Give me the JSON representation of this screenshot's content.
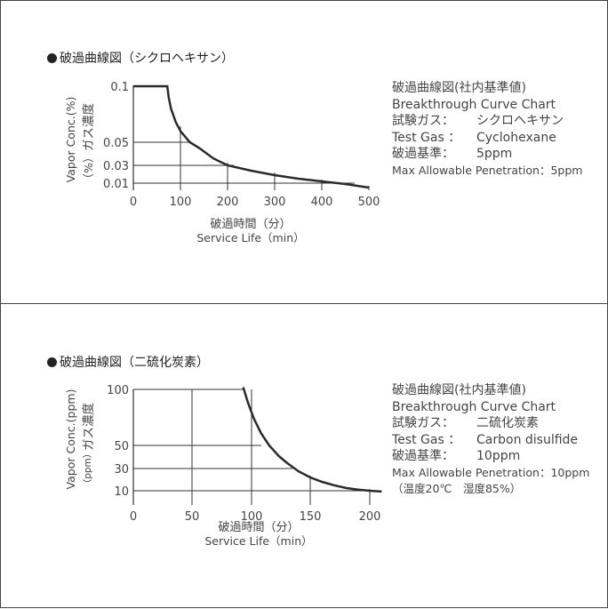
{
  "panels": [
    {
      "heading": "破過曲線図（シクロヘキサン）",
      "info": {
        "line1": "破過曲線図(社内基準値)",
        "line2": "Breakthrough Curve Chart",
        "gas_label_jp": "試験ガス：",
        "gas_value_jp": "シクロヘキサン",
        "gas_label_en": "Test Gas ：",
        "gas_value_en": "Cyclohexane",
        "criterion_label": "破過基準：",
        "criterion_value": "5ppm",
        "max_pen": "Max Allowable Penetration：5ppm"
      }
    },
    {
      "heading": "破過曲線図（二硫化炭素）",
      "info": {
        "line1": "破過曲線図(社内基準値)",
        "line2": "Breakthrough Curve Chart",
        "gas_label_jp": "試験ガス：",
        "gas_value_jp": "二硫化炭素",
        "gas_label_en": "Test Gas ：",
        "gas_value_en": "Carbon disulfide",
        "criterion_label": "破過基準：",
        "criterion_value": "10ppm",
        "max_pen": "Max Allowable Penetration：10ppm",
        "conditions": "（温度20℃　湿度85%）"
      }
    }
  ],
  "chart_data": [
    {
      "type": "line",
      "xlabel": "破過時間（分）",
      "xlabel_en": "Service Life（min）",
      "ylabel_jp": "ガス濃度",
      "ylabel_unit": "（%）",
      "ylabel_en": "Vapor Conc.(%)",
      "x_ticks": [
        "0",
        "100",
        "200",
        "300",
        "400",
        "500"
      ],
      "y_ticks": [
        "0.01",
        "0.03",
        "0.05",
        "0.1"
      ],
      "grid": true,
      "series": [
        {
          "x": [
            0,
            72,
            75,
            80,
            90,
            100,
            120,
            140,
            170,
            200,
            250,
            300,
            350,
            400,
            450,
            500
          ],
          "y": [
            0.1,
            0.1,
            0.09,
            0.08,
            0.068,
            0.06,
            0.05,
            0.045,
            0.036,
            0.03,
            0.024,
            0.019,
            0.015,
            0.012,
            0.009,
            0.005
          ]
        }
      ]
    },
    {
      "type": "line",
      "xlabel": "破過時間（分）",
      "xlabel_en": "Service Life（min）",
      "ylabel_jp": "ガス濃度",
      "ylabel_unit": "（ppm）",
      "ylabel_en": "Vapor Conc.(ppm)",
      "x_ticks": [
        "0",
        "50",
        "100",
        "150",
        "200"
      ],
      "y_ticks": [
        "10",
        "30",
        "50",
        "100"
      ],
      "grid": true,
      "series": [
        {
          "x": [
            93,
            97,
            102,
            108,
            115,
            123,
            130,
            140,
            150,
            160,
            170,
            180,
            190,
            200,
            210
          ],
          "y": [
            102,
            88,
            74,
            61,
            50,
            41,
            35,
            27.5,
            22,
            18,
            15,
            12.5,
            11,
            10,
            9.3
          ]
        }
      ]
    }
  ]
}
